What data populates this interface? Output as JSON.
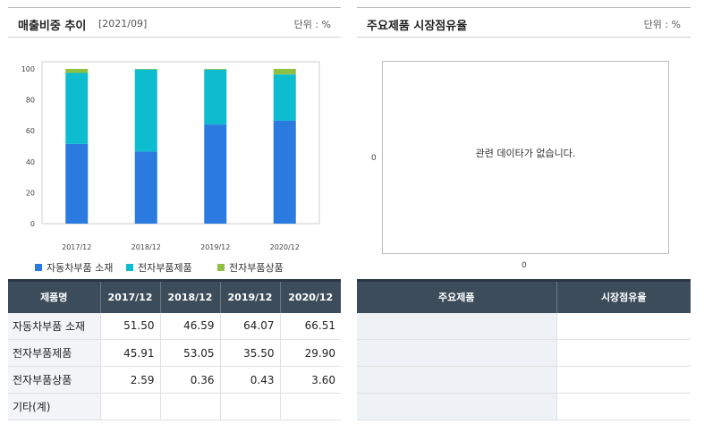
{
  "left_panel": {
    "title": "매출비중 추이",
    "period": "[2021/09]",
    "unit": "단위 : %"
  },
  "right_panel": {
    "title": "주요제품 시장점유율",
    "unit": "단위 : %",
    "empty_message": "관련 데이타가 없습니다.",
    "y_zero_label": "0",
    "x_zero_label": "0",
    "table_headers": [
      "주요제품",
      "시장점유율"
    ]
  },
  "chart_data": {
    "type": "bar",
    "stacked": true,
    "categories": [
      "2017/12",
      "2018/12",
      "2019/12",
      "2020/12"
    ],
    "series": [
      {
        "name": "자동차부품 소재",
        "values": [
          51.5,
          46.59,
          64.07,
          66.51
        ],
        "color": "#2b7ae0"
      },
      {
        "name": "전자부품제품",
        "values": [
          45.91,
          53.05,
          35.5,
          29.9
        ],
        "color": "#0ebccf"
      },
      {
        "name": "전자부품상품",
        "values": [
          2.59,
          0.36,
          0.43,
          3.6
        ],
        "color": "#8dc043"
      }
    ],
    "ylim": [
      0,
      100
    ],
    "yticks": [
      0,
      20,
      40,
      60,
      80,
      100
    ],
    "grid": false,
    "legend_position": "bottom"
  },
  "table": {
    "headers": [
      "제품명",
      "2017/12",
      "2018/12",
      "2019/12",
      "2020/12"
    ],
    "rows": [
      {
        "label": "자동차부품 소재",
        "values": [
          "51.50",
          "46.59",
          "64.07",
          "66.51"
        ]
      },
      {
        "label": "전자부품제품",
        "values": [
          "45.91",
          "53.05",
          "35.50",
          "29.90"
        ]
      },
      {
        "label": "전자부품상품",
        "values": [
          "2.59",
          "0.36",
          "0.43",
          "3.60"
        ]
      },
      {
        "label": "기타(계)",
        "values": [
          "",
          "",
          "",
          ""
        ]
      }
    ]
  }
}
